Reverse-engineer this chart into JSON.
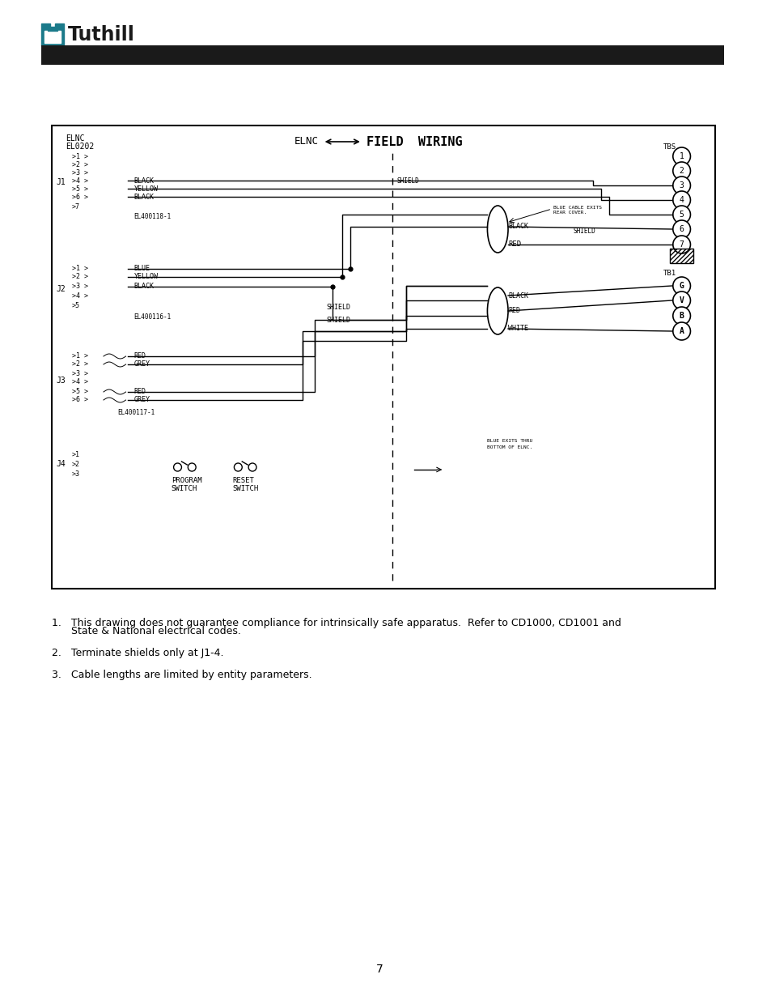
{
  "page_bg": "#ffffff",
  "header_bar_color": "#1a1a1a",
  "tuthill_text": "Tuthill",
  "tuthill_color": "#1a1a1a",
  "teal_color": "#1b7a8a",
  "notes": [
    "1.   This drawing does not guarantee compliance for intrinsically safe apparatus.  Refer to CD1000, CD1001 and",
    "      State & National electrical codes.",
    "2.   Terminate shields only at J1-4.",
    "3.   Cable lengths are limited by entity parameters."
  ],
  "page_number": "7",
  "tbs_numbers": [
    "1",
    "2",
    "3",
    "4",
    "5",
    "6",
    "7"
  ],
  "tb1_letters": [
    "G",
    "V",
    "B",
    "A"
  ]
}
